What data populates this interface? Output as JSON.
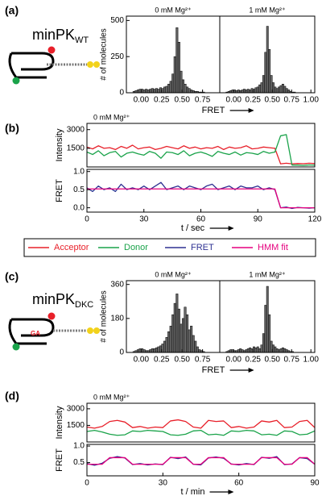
{
  "figure": {
    "panel_labels": [
      "(a)",
      "(b)",
      "(c)",
      "(d)"
    ],
    "constructs": [
      {
        "name": "minPK",
        "subscript": "WT"
      },
      {
        "name": "minPK",
        "subscript": "DKC",
        "mutation": "GA"
      }
    ]
  },
  "chart_data": [
    {
      "type": "histogram",
      "title": "0 mM Mg²⁺",
      "ylabel": "# of molecules",
      "xlabel": "FRET",
      "color": "#666666",
      "bins": [
        -0.1,
        -0.075,
        -0.05,
        -0.025,
        0,
        0.025,
        0.05,
        0.075,
        0.1,
        0.125,
        0.15,
        0.175,
        0.2,
        0.225,
        0.25,
        0.275,
        0.3,
        0.325,
        0.35,
        0.375,
        0.4,
        0.425,
        0.45,
        0.475,
        0.5,
        0.525,
        0.55,
        0.575,
        0.6,
        0.625,
        0.65,
        0.675,
        0.7,
        0.725,
        0.75,
        0.775,
        0.8,
        0.825,
        0.85
      ],
      "values": [
        10,
        15,
        20,
        25,
        25,
        20,
        25,
        20,
        25,
        30,
        25,
        30,
        25,
        35,
        30,
        40,
        45,
        60,
        80,
        130,
        250,
        450,
        350,
        150,
        90,
        60,
        40,
        30,
        20,
        15,
        10,
        10,
        5,
        5,
        5,
        0,
        0,
        0
      ],
      "xlim": [
        -0.18,
        0.96
      ],
      "xticks": [
        {
          "value": 0,
          "label": "0.00"
        },
        {
          "value": 0.25,
          "label": "0.25"
        },
        {
          "value": 0.5,
          "label": "0.50"
        },
        {
          "value": 0.75,
          "label": "0.75"
        }
      ],
      "ylim": [
        0,
        530
      ],
      "yticks": [
        0,
        250,
        500
      ]
    },
    {
      "type": "histogram",
      "title": "1 mM Mg²⁺",
      "color": "#666666",
      "bins": [
        -0.1,
        -0.075,
        -0.05,
        -0.025,
        0,
        0.025,
        0.05,
        0.075,
        0.1,
        0.125,
        0.15,
        0.175,
        0.2,
        0.225,
        0.25,
        0.275,
        0.3,
        0.325,
        0.35,
        0.375,
        0.4,
        0.425,
        0.45,
        0.475,
        0.5,
        0.525,
        0.55,
        0.575,
        0.6,
        0.625,
        0.65,
        0.675,
        0.7,
        0.725,
        0.75,
        0.775,
        0.8,
        0.825,
        0.85
      ],
      "values": [
        5,
        10,
        15,
        20,
        20,
        15,
        20,
        15,
        20,
        25,
        20,
        25,
        20,
        30,
        25,
        35,
        40,
        55,
        70,
        120,
        280,
        460,
        300,
        120,
        70,
        40,
        30,
        40,
        50,
        60,
        45,
        30,
        20,
        10,
        5,
        5,
        0,
        0
      ],
      "xlim": [
        -0.18,
        1.05
      ],
      "xticks": [
        {
          "value": 0,
          "label": "0.00"
        },
        {
          "value": 0.25,
          "label": "0.25"
        },
        {
          "value": 0.5,
          "label": "0.50"
        },
        {
          "value": 0.75,
          "label": "0.75"
        },
        {
          "value": 1,
          "label": "1.00"
        }
      ],
      "ylim": [
        0,
        530
      ]
    },
    {
      "type": "line",
      "title": "0 mM Mg²⁺",
      "ylabel": "Intensity",
      "x": [
        0,
        3,
        6,
        9,
        12,
        15,
        18,
        21,
        24,
        27,
        30,
        33,
        36,
        39,
        42,
        45,
        48,
        51,
        54,
        57,
        60,
        63,
        66,
        69,
        72,
        75,
        78,
        81,
        84,
        87,
        90,
        93,
        96,
        99,
        102,
        105,
        108,
        111,
        114,
        117,
        120
      ],
      "xlim": [
        0,
        120
      ],
      "ylim": [
        0,
        3500
      ],
      "yticks": [
        1500,
        3000
      ],
      "series": [
        {
          "name": "Acceptor",
          "color": "#e8202a",
          "values": [
            1600,
            1450,
            1700,
            1500,
            1550,
            1400,
            1650,
            1500,
            1750,
            1450,
            1550,
            1600,
            1400,
            1500,
            1650,
            1550,
            1450,
            1700,
            1500,
            1600,
            1450,
            1550,
            1500,
            1650,
            1400,
            1600,
            1500,
            1550,
            1700,
            1450,
            1500,
            1600,
            1550,
            1500,
            250,
            300,
            250,
            280,
            260,
            300,
            270
          ]
        },
        {
          "name": "Donor",
          "color": "#1aa34a",
          "values": [
            1200,
            1000,
            1300,
            900,
            1150,
            1250,
            800,
            1100,
            1200,
            1050,
            950,
            1250,
            1100,
            700,
            1200,
            1150,
            1000,
            1300,
            900,
            1100,
            1200,
            1050,
            850,
            1250,
            1100,
            1000,
            1200,
            950,
            1150,
            1100,
            1000,
            1250,
            1100,
            1200,
            2500,
            2600,
            150,
            150,
            120,
            160,
            140
          ]
        }
      ]
    },
    {
      "type": "line",
      "ylabel": "FRET",
      "xlabel": "t / sec",
      "x": [
        0,
        3,
        6,
        9,
        12,
        15,
        18,
        21,
        24,
        27,
        30,
        33,
        36,
        39,
        42,
        45,
        48,
        51,
        54,
        57,
        60,
        63,
        66,
        69,
        72,
        75,
        78,
        81,
        84,
        87,
        90,
        93,
        96,
        99,
        102,
        105,
        108,
        111,
        114,
        117,
        120
      ],
      "xlim": [
        0,
        120
      ],
      "xticks": [
        0,
        30,
        60,
        90,
        120
      ],
      "ylim": [
        -0.12,
        1.06
      ],
      "yticks": [
        {
          "value": 0,
          "label": "0.0"
        },
        0.5,
        {
          "value": 1,
          "label": "1.0"
        }
      ],
      "series": [
        {
          "name": "FRET",
          "color": "#2e3192",
          "values": [
            0.55,
            0.45,
            0.6,
            0.5,
            0.55,
            0.45,
            0.65,
            0.5,
            0.55,
            0.5,
            0.6,
            0.5,
            0.6,
            0.7,
            0.5,
            0.55,
            0.6,
            0.5,
            0.6,
            0.55,
            0.5,
            0.6,
            0.65,
            0.5,
            0.55,
            0.6,
            0.5,
            0.6,
            0.55,
            0.55,
            0.6,
            0.5,
            0.55,
            0.5,
            0.0,
            0.02,
            -0.02,
            0.01,
            0.0,
            -0.01,
            0.0
          ]
        },
        {
          "name": "HMM fit",
          "color": "#e6007e",
          "values": [
            0.52,
            0.52,
            0.52,
            0.52,
            0.52,
            0.52,
            0.52,
            0.52,
            0.52,
            0.52,
            0.52,
            0.52,
            0.52,
            0.52,
            0.52,
            0.52,
            0.52,
            0.52,
            0.52,
            0.52,
            0.52,
            0.52,
            0.52,
            0.52,
            0.52,
            0.52,
            0.52,
            0.52,
            0.52,
            0.52,
            0.52,
            0.52,
            0.52,
            0.52,
            0,
            0,
            0,
            0,
            0,
            0,
            0
          ]
        }
      ]
    },
    {
      "type": "histogram",
      "title": "0 mM Mg²⁺",
      "ylabel": "# of molecules",
      "xlabel": "FRET",
      "color": "#666666",
      "bins": [
        -0.1,
        -0.075,
        -0.05,
        -0.025,
        0,
        0.025,
        0.05,
        0.075,
        0.1,
        0.125,
        0.15,
        0.175,
        0.2,
        0.225,
        0.25,
        0.275,
        0.3,
        0.325,
        0.35,
        0.375,
        0.4,
        0.425,
        0.45,
        0.475,
        0.5,
        0.525,
        0.55,
        0.575,
        0.6,
        0.625,
        0.65,
        0.675,
        0.7,
        0.725,
        0.75,
        0.775,
        0.8,
        0.825,
        0.85
      ],
      "values": [
        5,
        10,
        15,
        20,
        20,
        15,
        10,
        10,
        15,
        20,
        20,
        25,
        30,
        35,
        45,
        60,
        80,
        110,
        140,
        200,
        260,
        310,
        230,
        150,
        180,
        240,
        200,
        120,
        140,
        90,
        60,
        30,
        15,
        10,
        5,
        0,
        0,
        0
      ],
      "xlim": [
        -0.18,
        0.96
      ],
      "xticks": [
        {
          "value": 0,
          "label": "0.00"
        },
        {
          "value": 0.25,
          "label": "0.25"
        },
        {
          "value": 0.5,
          "label": "0.50"
        },
        {
          "value": 0.75,
          "label": "0.75"
        }
      ],
      "ylim": [
        0,
        380
      ],
      "yticks": [
        0,
        180,
        360
      ]
    },
    {
      "type": "histogram",
      "title": "1 mM Mg²⁺",
      "color": "#666666",
      "bins": [
        -0.1,
        -0.075,
        -0.05,
        -0.025,
        0,
        0.025,
        0.05,
        0.075,
        0.1,
        0.125,
        0.15,
        0.175,
        0.2,
        0.225,
        0.25,
        0.275,
        0.3,
        0.325,
        0.35,
        0.375,
        0.4,
        0.425,
        0.45,
        0.475,
        0.5,
        0.525,
        0.55,
        0.575,
        0.6,
        0.625,
        0.65,
        0.675,
        0.7,
        0.725,
        0.75,
        0.775,
        0.8,
        0.825,
        0.85
      ],
      "values": [
        5,
        10,
        15,
        15,
        10,
        10,
        15,
        20,
        15,
        10,
        15,
        20,
        25,
        20,
        30,
        25,
        30,
        20,
        40,
        100,
        250,
        350,
        200,
        60,
        40,
        30,
        20,
        15,
        20,
        25,
        20,
        15,
        10,
        5,
        5,
        0,
        0,
        0
      ],
      "xlim": [
        -0.18,
        1.05
      ],
      "xticks": [
        {
          "value": 0,
          "label": "0.00"
        },
        {
          "value": 0.25,
          "label": "0.25"
        },
        {
          "value": 0.5,
          "label": "0.50"
        },
        {
          "value": 0.75,
          "label": "0.75"
        },
        {
          "value": 1,
          "label": "1.00"
        }
      ],
      "ylim": [
        0,
        380
      ]
    },
    {
      "type": "line",
      "title": "0 mM Mg²⁺",
      "ylabel": "Intensity",
      "x": [
        0,
        3,
        6,
        9,
        12,
        15,
        18,
        21,
        24,
        27,
        30,
        33,
        36,
        39,
        42,
        45,
        48,
        51,
        54,
        57,
        60,
        63,
        66,
        69,
        72,
        75,
        78,
        81,
        84,
        87,
        90
      ],
      "xlim": [
        0,
        90
      ],
      "ylim": [
        0,
        3500
      ],
      "yticks": [
        1500,
        3000
      ],
      "series": [
        {
          "name": "Acceptor",
          "color": "#e8202a",
          "values": [
            1350,
            1250,
            1400,
            1850,
            1950,
            1800,
            1300,
            1400,
            1250,
            1350,
            1300,
            1900,
            2000,
            1850,
            1350,
            1250,
            1950,
            1850,
            1900,
            1300,
            1400,
            1250,
            1350,
            1900,
            1800,
            1950,
            1300,
            1350,
            1850,
            1950,
            1300
          ]
        },
        {
          "name": "Donor",
          "color": "#1aa34a",
          "values": [
            950,
            1050,
            900,
            700,
            600,
            650,
            1000,
            950,
            1050,
            1000,
            950,
            650,
            600,
            700,
            1000,
            1050,
            650,
            700,
            600,
            1000,
            950,
            1050,
            1000,
            650,
            700,
            600,
            1000,
            950,
            650,
            700,
            1000
          ]
        }
      ]
    },
    {
      "type": "line",
      "ylabel": "FRET",
      "xlabel": "t / min",
      "x": [
        0,
        3,
        6,
        9,
        12,
        15,
        18,
        21,
        24,
        27,
        30,
        33,
        36,
        39,
        42,
        45,
        48,
        51,
        54,
        57,
        60,
        63,
        66,
        69,
        72,
        75,
        78,
        81,
        84,
        87,
        90
      ],
      "xlim": [
        0,
        90
      ],
      "xticks": [
        0,
        30,
        60,
        90
      ],
      "ylim": [
        0.1,
        1.05
      ],
      "yticks": [
        0.5,
        {
          "value": 1,
          "label": "1.0"
        }
      ],
      "series": [
        {
          "name": "FRET",
          "color": "#2e3192",
          "values": [
            0.47,
            0.42,
            0.48,
            0.63,
            0.68,
            0.64,
            0.44,
            0.47,
            0.43,
            0.46,
            0.44,
            0.66,
            0.62,
            0.67,
            0.45,
            0.43,
            0.64,
            0.67,
            0.63,
            0.46,
            0.43,
            0.47,
            0.44,
            0.66,
            0.63,
            0.68,
            0.44,
            0.46,
            0.65,
            0.62,
            0.45
          ]
        },
        {
          "name": "HMM fit",
          "color": "#e6007e",
          "values": [
            0.45,
            0.45,
            0.45,
            0.65,
            0.65,
            0.65,
            0.45,
            0.45,
            0.45,
            0.45,
            0.45,
            0.65,
            0.65,
            0.65,
            0.45,
            0.45,
            0.65,
            0.65,
            0.65,
            0.45,
            0.45,
            0.45,
            0.45,
            0.65,
            0.65,
            0.65,
            0.45,
            0.45,
            0.65,
            0.65,
            0.45
          ]
        }
      ]
    }
  ]
}
